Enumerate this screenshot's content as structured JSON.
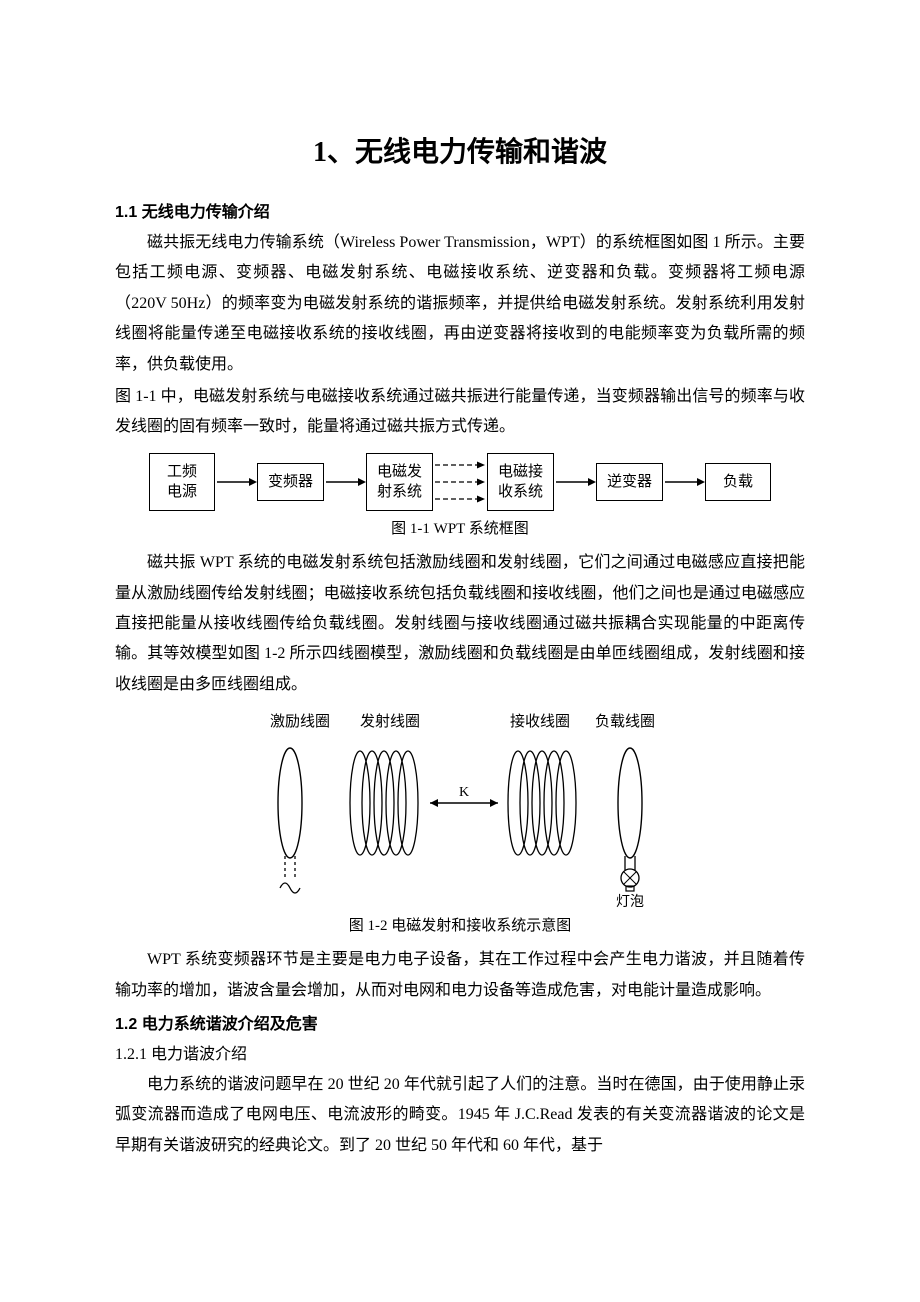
{
  "colors": {
    "text": "#000000",
    "background": "#ffffff",
    "line": "#000000"
  },
  "title": "1、无线电力传输和谐波",
  "s1_1": {
    "heading": "1.1 无线电力传输介绍",
    "p1": "磁共振无线电力传输系统（Wireless Power Transmission，WPT）的系统框图如图 1 所示。主要包括工频电源、变频器、电磁发射系统、电磁接收系统、逆变器和负载。变频器将工频电源（220V 50Hz）的频率变为电磁发射系统的谐振频率，并提供给电磁发射系统。发射系统利用发射线圈将能量传递至电磁接收系统的接收线圈，再由逆变器将接收到的电能频率变为负载所需的频率，供负载使用。",
    "p2": "图 1-1 中，电磁发射系统与电磁接收系统通过磁共振进行能量传递，当变频器输出信号的频率与收发线圈的固有频率一致时，能量将通过磁共振方式传递。",
    "p3": "磁共振 WPT 系统的电磁发射系统包括激励线圈和发射线圈，它们之间通过电磁感应直接把能量从激励线圈传给发射线圈；电磁接收系统包括负载线圈和接收线圈，他们之间也是通过电磁感应直接把能量从接收线圈传给负载线圈。发射线圈与接收线圈通过磁共振耦合实现能量的中距离传输。其等效模型如图 1-2 所示四线圈模型，激励线圈和负载线圈是由单匝线圈组成，发射线圈和接收线圈是由多匝线圈组成。",
    "p4": "WPT 系统变频器环节是主要是电力电子设备，其在工作过程中会产生电力谐波，并且随着传输功率的增加，谐波含量会增加，从而对电网和电力设备等造成危害，对电能计量造成影响。"
  },
  "fig1": {
    "caption": "图 1-1  WPT 系统框图",
    "nodes": [
      "工频\n电源",
      "变频器",
      "电磁发\n射系统",
      "电磁接\n收系统",
      "逆变器",
      "负载"
    ],
    "edge_style": [
      "solid",
      "solid",
      "dashed-multi",
      "solid",
      "solid"
    ],
    "box_border": "#000000",
    "arrow_color": "#000000",
    "font_size": 15
  },
  "fig2": {
    "caption": "图 1-2  电磁发射和接收系统示意图",
    "labels_top": [
      "激励线圈",
      "发射线圈",
      "接收线圈",
      "负载线圈"
    ],
    "label_k": "K",
    "label_bulb": "灯泡",
    "coil_color": "#000000",
    "label_font_size": 15,
    "tx_coil_turns": 5,
    "rx_coil_turns": 5
  },
  "s1_2": {
    "heading": "1.2 电力系统谐波介绍及危害",
    "sub1": "1.2.1 电力谐波介绍",
    "p1": "电力系统的谐波问题早在 20 世纪 20 年代就引起了人们的注意。当时在德国，由于使用静止汞弧变流器而造成了电网电压、电流波形的畸变。1945 年 J.C.Read 发表的有关变流器谐波的论文是早期有关谐波研究的经典论文。到了 20 世纪 50 年代和 60 年代，基于"
  }
}
